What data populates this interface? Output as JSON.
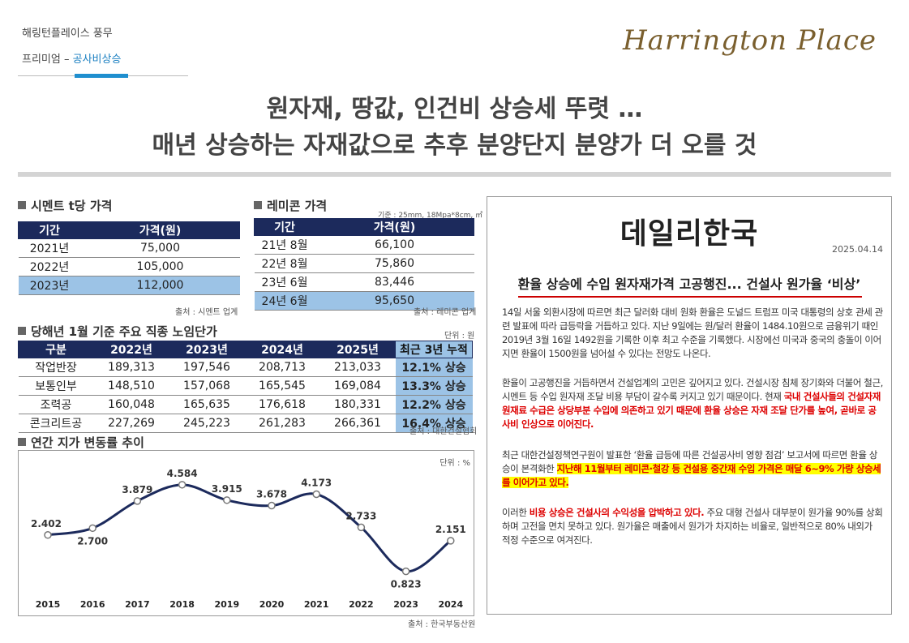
{
  "header": {
    "company": "해링턴플레이스 풍무",
    "category_prefix": "프리미엄 –",
    "category": "공사비상승",
    "logo": "Harrington Place"
  },
  "headline": {
    "line1": "원자재, 땅값, 인건비 상승세 뚜렷 …",
    "line2": "매년 상승하는 자재값으로 추후 분양단지 분양가 더 오를 것"
  },
  "cement": {
    "title": "시멘트 t당 가격",
    "columns": [
      "기간",
      "가격(원)"
    ],
    "rows": [
      [
        "2021년",
        "75,000"
      ],
      [
        "2022년",
        "105,000"
      ],
      [
        "2023년",
        "112,000"
      ]
    ],
    "source": "출처 : 시멘트 업계"
  },
  "remicon": {
    "title": "레미콘 가격",
    "note": "기준 : 25mm, 18Mpa*8cm, ㎥",
    "columns": [
      "기간",
      "가격(원)"
    ],
    "rows": [
      [
        "21년 8월",
        "66,100"
      ],
      [
        "22년 8월",
        "75,860"
      ],
      [
        "23년 6월",
        "83,446"
      ],
      [
        "24년 6월",
        "95,650"
      ]
    ],
    "source": "출처 : 레미콘 업계"
  },
  "wages": {
    "title": "당해년 1월 기준 주요 직종 노임단가",
    "unit": "단위 : 원",
    "columns": [
      "구분",
      "2022년",
      "2023년",
      "2024년",
      "2025년",
      "최근 3년 누적"
    ],
    "rows": [
      [
        "작업반장",
        "189,313",
        "197,546",
        "208,713",
        "213,033",
        "12.1% 상승"
      ],
      [
        "보통인부",
        "148,510",
        "157,068",
        "165,545",
        "169,084",
        "13.3% 상승"
      ],
      [
        "조력공",
        "160,048",
        "165,635",
        "176,618",
        "180,331",
        "12.2% 상승"
      ],
      [
        "콘크리트공",
        "227,269",
        "245,223",
        "261,283",
        "266,361",
        "16.4% 상승"
      ]
    ],
    "source": "출처 : 대한건설협회"
  },
  "land": {
    "title": "연간 지가 변동률 추이",
    "unit": "단위 : %",
    "source": "출처 : 한국부동산원"
  },
  "chart_data": {
    "type": "line",
    "title": "연간 지가 변동률 추이",
    "x": [
      "2015",
      "2016",
      "2017",
      "2018",
      "2019",
      "2020",
      "2021",
      "2022",
      "2023",
      "2024"
    ],
    "series": [
      {
        "values": [
          2.402,
          2.7,
          3.879,
          4.584,
          3.915,
          3.678,
          4.173,
          2.733,
          0.823,
          2.151
        ]
      }
    ],
    "labels": [
      "2.402",
      "2.700",
      "3.879",
      "4.584",
      "3.915",
      "3.678",
      "4.173",
      "2.733",
      "0.823",
      "2.151"
    ],
    "ylim": [
      0,
      5
    ],
    "color": "#1c2a5c",
    "grid": false
  },
  "news": {
    "paper": "데일리한국",
    "date": "2025.04.14",
    "headline": "환율 상승에 수입 원자재가격 고공행진... 건설사 원가율 ‘비상’",
    "p1": "14일 서울 외환시장에 따르면 최근 달러화 대비 원화 환율은 도널드 트럼프 미국 대통령의 상호 관세 관련 발표에 따라 급등락을 거듭하고 있다. 지난 9일에는 원/달러 환율이 1484.10원으로 금융위기 때인 2019년 3월 16일 1492원을 기록한 이후 최고 수준을 기록했다. 시장에선 미국과 중국의 충돌이 이어지면 환율이 1500원을 넘어설 수 있다는 전망도 나온다.",
    "p2a": "환율이 고공행진을 거듭하면서 건설업계의 고민은 깊어지고 있다. 건설시장 침체 장기화와 더불어 철근, 시멘트 등 수입 원자재 조달 비용 부담이 갈수록 커지고 있기 때문이다. 현재 ",
    "p2b": "국내 건설사들의 건설자재 원재료 수급은 상당부분 수입에 의존하고 있기 때문에 환율 상승은 자재 조달 단가를 높여, 곧바로 공사비 인상으로 이어진다.",
    "p3a": "최근 대한건설정책연구원이 발표한 ‘환율 급등에 따른 건설공사비 영향 점검’ 보고서에 따르면 환율 상승이 본격화한 ",
    "p3b": "지난해 11월부터 레미콘·철강 등 건설용 중간재 수입 가격은 매달 6~9% 가량 상승세를 이어가고 있다.",
    "p4a": "이러한 ",
    "p4b": "비용 상승은 건설사의 수익성을 압박하고 있다.",
    "p4c": " 주요 대형 건설사 대부분이 원가율 90%를 상회하며 고전을 면치 못하고 있다. 원가율은 매출에서 원가가 차지하는 비율로, 일반적으로 80% 내외가 적정 수준으로 여겨진다."
  }
}
